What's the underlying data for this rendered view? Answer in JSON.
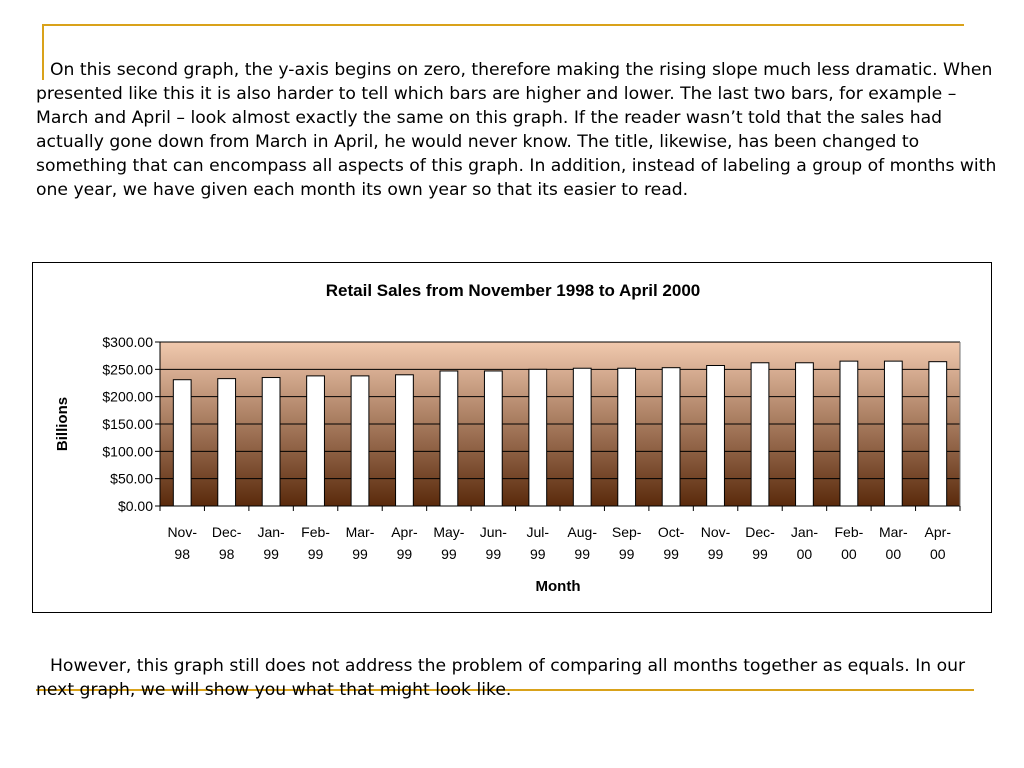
{
  "paragraphs": [
    "On this second graph, the y-axis begins on zero, therefore making the rising slope much less dramatic. When presented like this it is also harder to tell which bars are higher and lower. The last two bars, for example – March and April – look almost exactly the same on this graph. If the reader wasn’t told that the sales had actually gone down from March in April, he would never know. The title, likewise, has been changed to something that can encompass all aspects of this graph. In addition, instead of labeling a group of months with one year, we have given each month its own year so that its easier to read.",
    "However, this graph still does not address the problem of comparing all months together as equals. In our next graph, we will show you what that might look like."
  ],
  "colors": {
    "accent_line": "#d9a21a",
    "plot_top": "#f1c9ae",
    "plot_bottom": "#5a2a0c",
    "bar_fill": "#ffffff"
  },
  "chart_data": {
    "type": "bar",
    "title": "Retail Sales from November 1998 to April 2000",
    "xlabel": "Month",
    "ylabel": "Billions",
    "ylim": [
      0,
      300
    ],
    "yticks": [
      "$0.00",
      "$50.00",
      "$100.00",
      "$150.00",
      "$200.00",
      "$250.00",
      "$300.00"
    ],
    "categories": [
      [
        "Nov-",
        "98"
      ],
      [
        "Dec-",
        "98"
      ],
      [
        "Jan-",
        "99"
      ],
      [
        "Feb-",
        "99"
      ],
      [
        "Mar-",
        "99"
      ],
      [
        "Apr-",
        "99"
      ],
      [
        "May-",
        "99"
      ],
      [
        "Jun-",
        "99"
      ],
      [
        "Jul-",
        "99"
      ],
      [
        "Aug-",
        "99"
      ],
      [
        "Sep-",
        "99"
      ],
      [
        "Oct-",
        "99"
      ],
      [
        "Nov-",
        "99"
      ],
      [
        "Dec-",
        "99"
      ],
      [
        "Jan-",
        "00"
      ],
      [
        "Feb-",
        "00"
      ],
      [
        "Mar-",
        "00"
      ],
      [
        "Apr-",
        "00"
      ]
    ],
    "values": [
      231,
      233,
      235,
      238,
      238,
      240,
      247,
      247,
      250,
      252,
      252,
      253,
      257,
      262,
      262,
      265,
      265,
      264
    ],
    "grid": true,
    "legend": "none"
  }
}
